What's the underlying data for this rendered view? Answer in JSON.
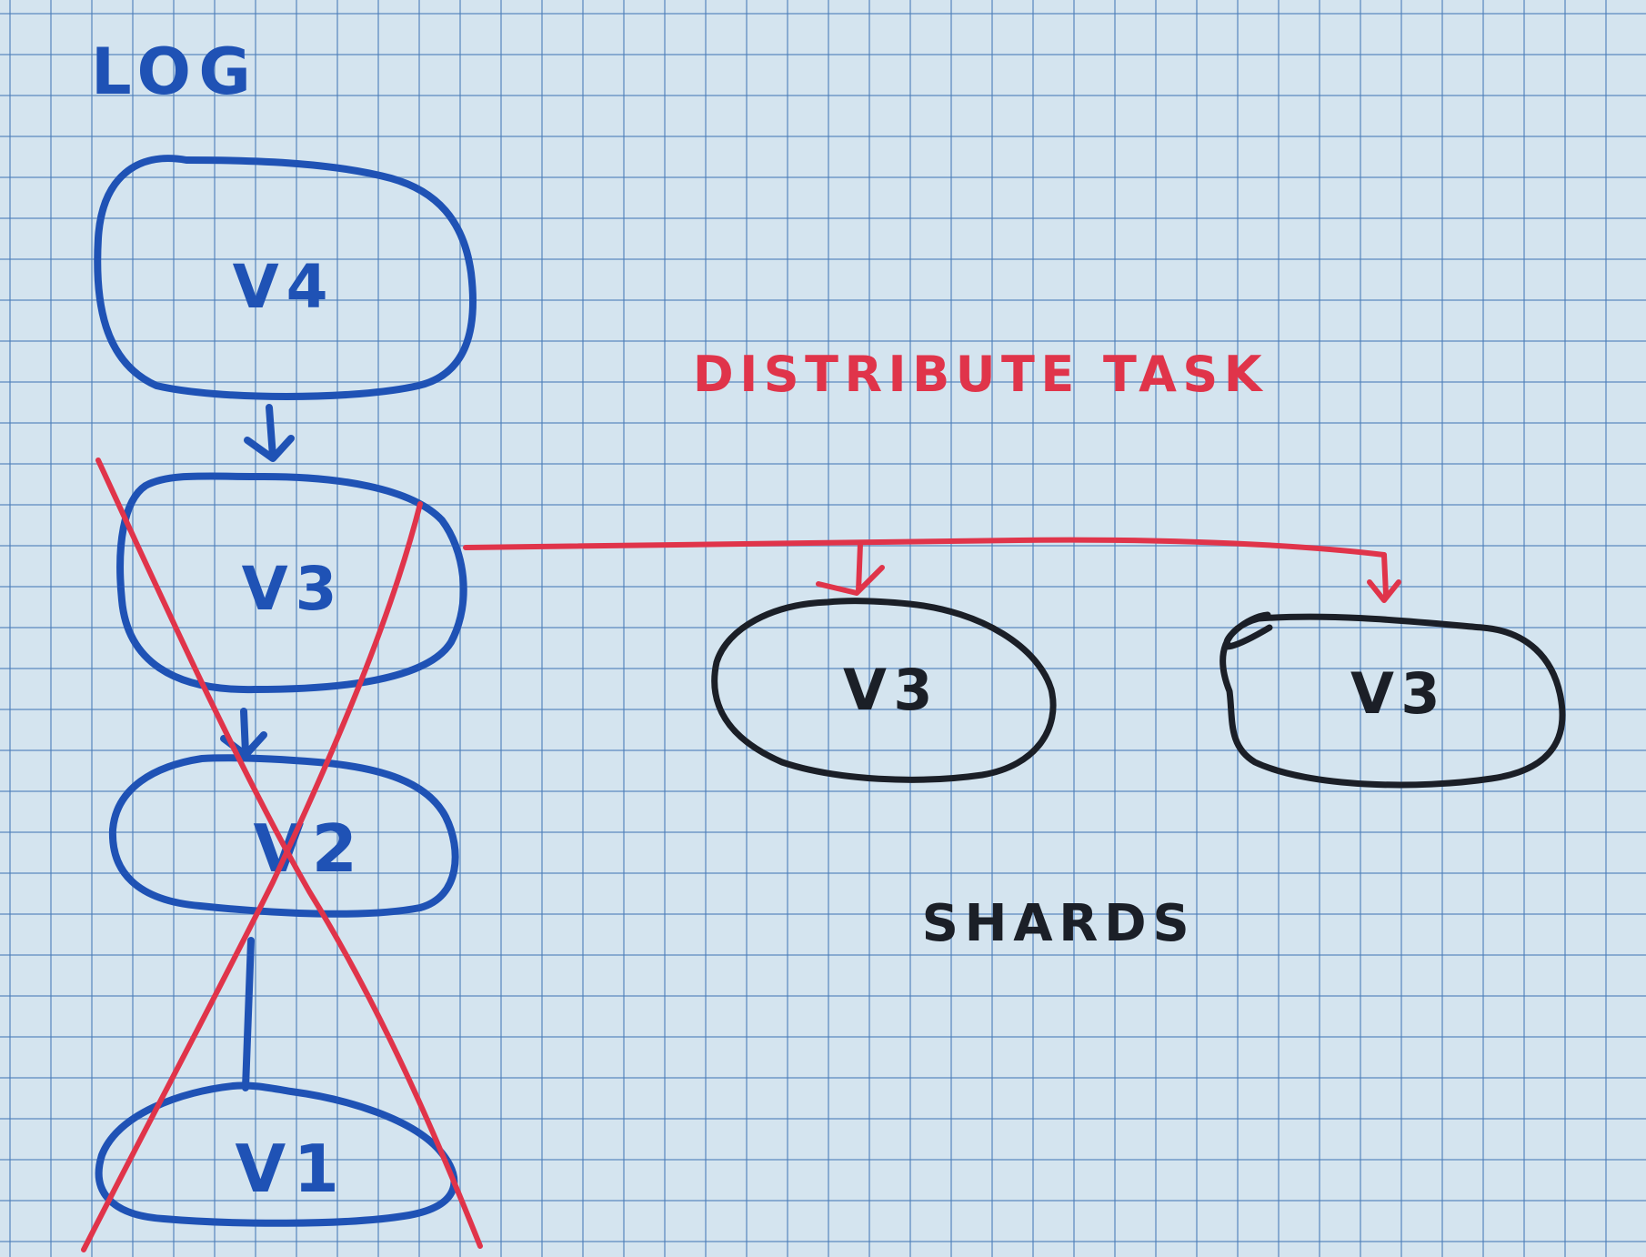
{
  "colors": {
    "paper": "#d4e4ef",
    "grid_line": "#4a7cb8",
    "blue_ink": "#1f52b5",
    "red_ink": "#e0344a",
    "black_ink": "#1b1f27"
  },
  "log": {
    "title": "LOG",
    "versions": [
      {
        "label": "V4",
        "crossed_out": false
      },
      {
        "label": "V3",
        "crossed_out": true
      },
      {
        "label": "V2",
        "crossed_out": true
      },
      {
        "label": "V1",
        "crossed_out": true
      }
    ]
  },
  "distribute": {
    "label": "DISTRIBUTE TASK"
  },
  "shards": {
    "label": "SHARDS",
    "nodes": [
      {
        "label": "V3"
      },
      {
        "label": "V3"
      }
    ]
  }
}
